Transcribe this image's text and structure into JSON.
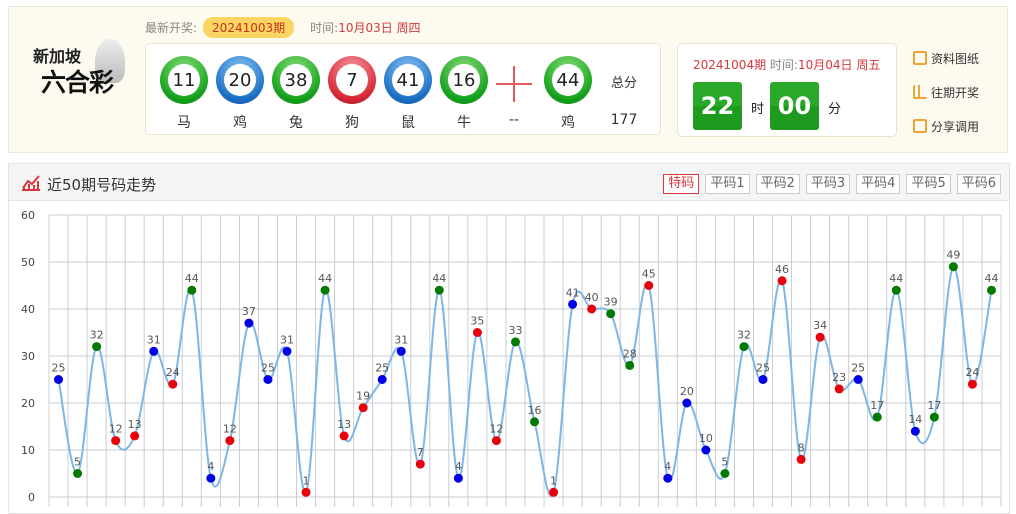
{
  "logo": {
    "text1": "新加坡",
    "text2": "六合彩"
  },
  "latest": {
    "label": "最新开奖:",
    "issue": "20241003期",
    "time_label": "时间:",
    "time": "10月03日 周四"
  },
  "balls": [
    {
      "num": "11",
      "zodiac": "马",
      "color": "green"
    },
    {
      "num": "20",
      "zodiac": "鸡",
      "color": "blue"
    },
    {
      "num": "38",
      "zodiac": "兔",
      "color": "green"
    },
    {
      "num": "7",
      "zodiac": "狗",
      "color": "red"
    },
    {
      "num": "41",
      "zodiac": "鼠",
      "color": "blue"
    },
    {
      "num": "16",
      "zodiac": "牛",
      "color": "green"
    }
  ],
  "plus_label": "--",
  "special": {
    "num": "44",
    "zodiac": "鸡",
    "color": "green"
  },
  "total": {
    "label": "总分",
    "value": "177"
  },
  "next": {
    "issue": "20241004期",
    "time_label": "时间:",
    "time": "10月04日 周五",
    "hour": "22",
    "hour_unit": "时",
    "minute": "00",
    "minute_unit": "分"
  },
  "links": [
    {
      "label": "资料图纸",
      "icon": "notepad-icon"
    },
    {
      "label": "往期开奖",
      "icon": "bar-chart-icon"
    },
    {
      "label": "分享调用",
      "icon": "share-monitor-icon"
    }
  ],
  "panel": {
    "title": "近50期号码走势",
    "tabs": [
      "特码",
      "平码1",
      "平码2",
      "平码3",
      "平码4",
      "平码5",
      "平码6"
    ],
    "active_tab": 0
  },
  "colors": {
    "red": "#e8000b",
    "blue": "#0000e6",
    "green": "#007a00",
    "line": "#7eb6e6"
  },
  "chart_data": {
    "type": "line",
    "ylim": [
      0,
      60
    ],
    "yticks": [
      0,
      10,
      20,
      30,
      40,
      50,
      60
    ],
    "grid": true,
    "values": [
      25,
      5,
      32,
      12,
      13,
      31,
      24,
      44,
      4,
      12,
      37,
      25,
      31,
      1,
      44,
      13,
      19,
      25,
      31,
      7,
      44,
      4,
      35,
      12,
      33,
      16,
      1,
      41,
      40,
      39,
      28,
      45,
      4,
      20,
      10,
      5,
      32,
      25,
      46,
      8,
      34,
      23,
      25,
      17,
      44,
      14,
      17,
      49,
      24,
      44
    ],
    "point_colors": [
      "blue",
      "green",
      "green",
      "red",
      "red",
      "blue",
      "red",
      "green",
      "blue",
      "red",
      "blue",
      "blue",
      "blue",
      "red",
      "green",
      "red",
      "red",
      "blue",
      "blue",
      "red",
      "green",
      "blue",
      "red",
      "red",
      "green",
      "green",
      "red",
      "blue",
      "red",
      "green",
      "green",
      "red",
      "blue",
      "blue",
      "blue",
      "green",
      "green",
      "blue",
      "red",
      "red",
      "red",
      "red",
      "blue",
      "green",
      "green",
      "blue",
      "green",
      "green",
      "red",
      "green"
    ]
  }
}
